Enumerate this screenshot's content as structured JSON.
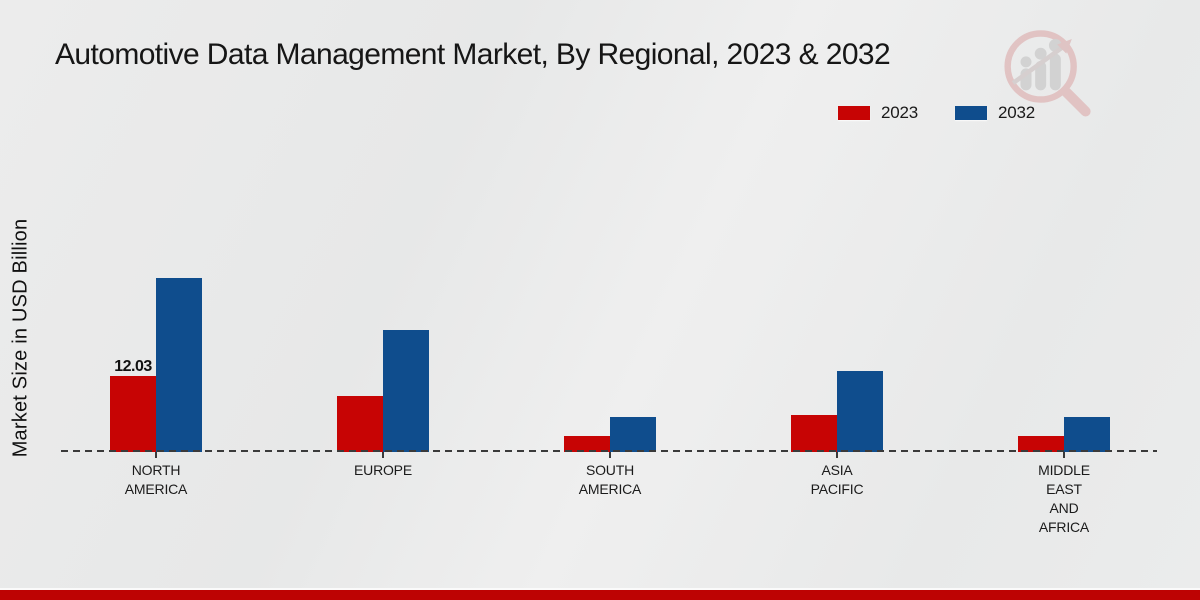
{
  "page_title": "Automotive Data Management Market, By Regional, 2023 & 2032",
  "colors": {
    "series_2023": "#c70404",
    "series_2032": "#0f4d8d",
    "footer_accent": "#bd0303",
    "axis": "#3a3a3a",
    "background": "#e9eaea"
  },
  "legend": {
    "position": "top-right",
    "items": [
      {
        "label": "2023",
        "color": "#c70404"
      },
      {
        "label": "2032",
        "color": "#0f4d8d"
      }
    ]
  },
  "watermark_icon": "magnifier-bar-chart-logo",
  "chart_data": {
    "type": "bar",
    "title": "Automotive Data Management Market, By Regional, 2023 & 2032",
    "ylabel": "Market Size in USD Billion",
    "xlabel": "",
    "grid": false,
    "baseline_style": "dashed",
    "legend_position": "top-right",
    "categories": [
      "NORTH\nAMERICA",
      "EUROPE",
      "SOUTH\nAMERICA",
      "ASIA\nPACIFIC",
      "MIDDLE\nEAST\nAND\nAFRICA"
    ],
    "series": [
      {
        "name": "2023",
        "color": "#c70404",
        "values": [
          12.03,
          8.9,
          2.5,
          5.8,
          2.5
        ]
      },
      {
        "name": "2032",
        "color": "#0f4d8d",
        "values": [
          27.5,
          19.3,
          5.6,
          12.8,
          5.6
        ]
      }
    ],
    "data_labels": [
      {
        "series": "2023",
        "category_index": 0,
        "text": "12.03"
      }
    ]
  }
}
